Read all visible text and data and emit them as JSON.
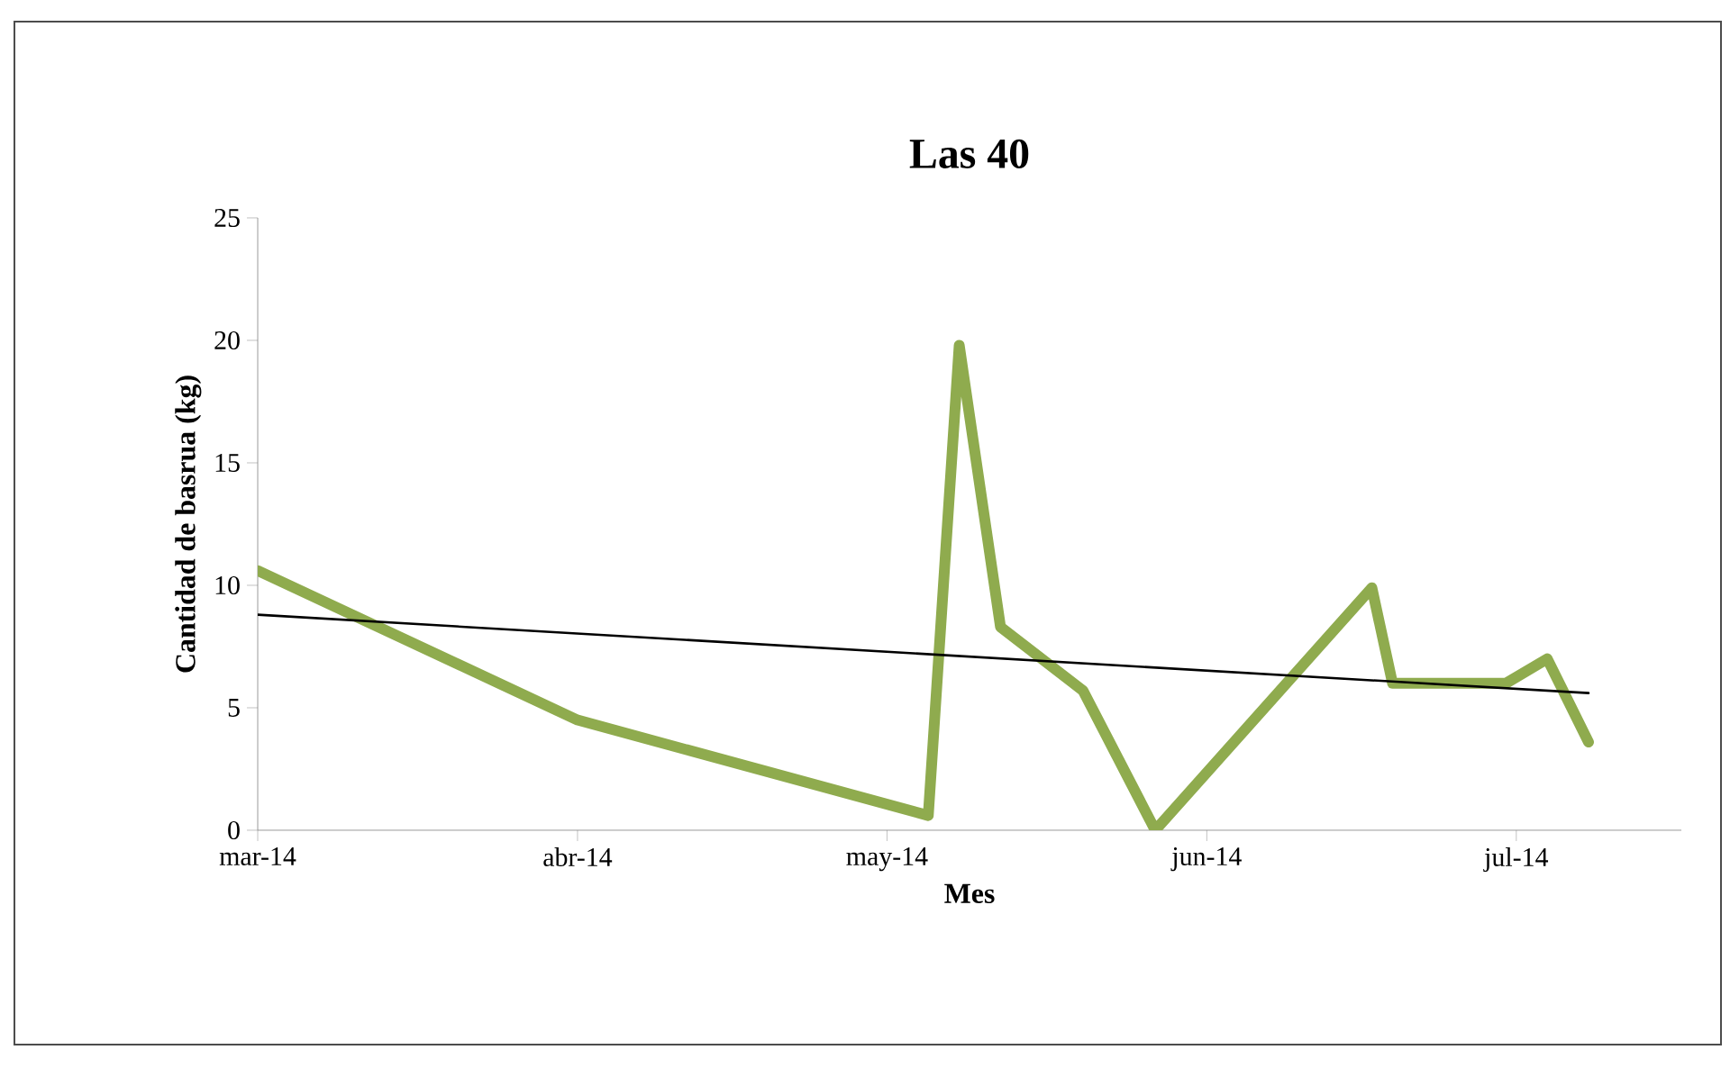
{
  "chart_data": {
    "type": "line",
    "title": "Las 40",
    "xlabel": "Mes",
    "ylabel": "Cantidad de basrua (kg)",
    "xlim": [
      "2014-03-01",
      "2014-07-17"
    ],
    "ylim": [
      0,
      25
    ],
    "yticks": [
      0,
      5,
      10,
      15,
      20,
      25
    ],
    "xticks": [
      {
        "value": "2014-03-01",
        "label": "mar-14"
      },
      {
        "value": "2014-04-01",
        "label": "abr-14"
      },
      {
        "value": "2014-05-01",
        "label": "may-14"
      },
      {
        "value": "2014-06-01",
        "label": "jun-14"
      },
      {
        "value": "2014-07-01",
        "label": "jul-14"
      }
    ],
    "series": [
      {
        "color": "#8fab4e",
        "x": [
          "2014-03-01",
          "2014-04-01",
          "2014-05-05",
          "2014-05-08",
          "2014-05-12",
          "2014-05-20",
          "2014-05-27",
          "2014-06-17",
          "2014-06-19",
          "2014-06-30",
          "2014-07-04",
          "2014-07-08"
        ],
        "values": [
          10.6,
          4.5,
          0.6,
          19.8,
          8.3,
          5.7,
          0,
          9.9,
          6.0,
          6.0,
          7.0,
          3.6
        ]
      },
      {
        "type": "line",
        "color": "#000000",
        "x": [
          "2014-03-01",
          "2014-07-08"
        ],
        "values": [
          8.8,
          5.6
        ]
      }
    ]
  }
}
